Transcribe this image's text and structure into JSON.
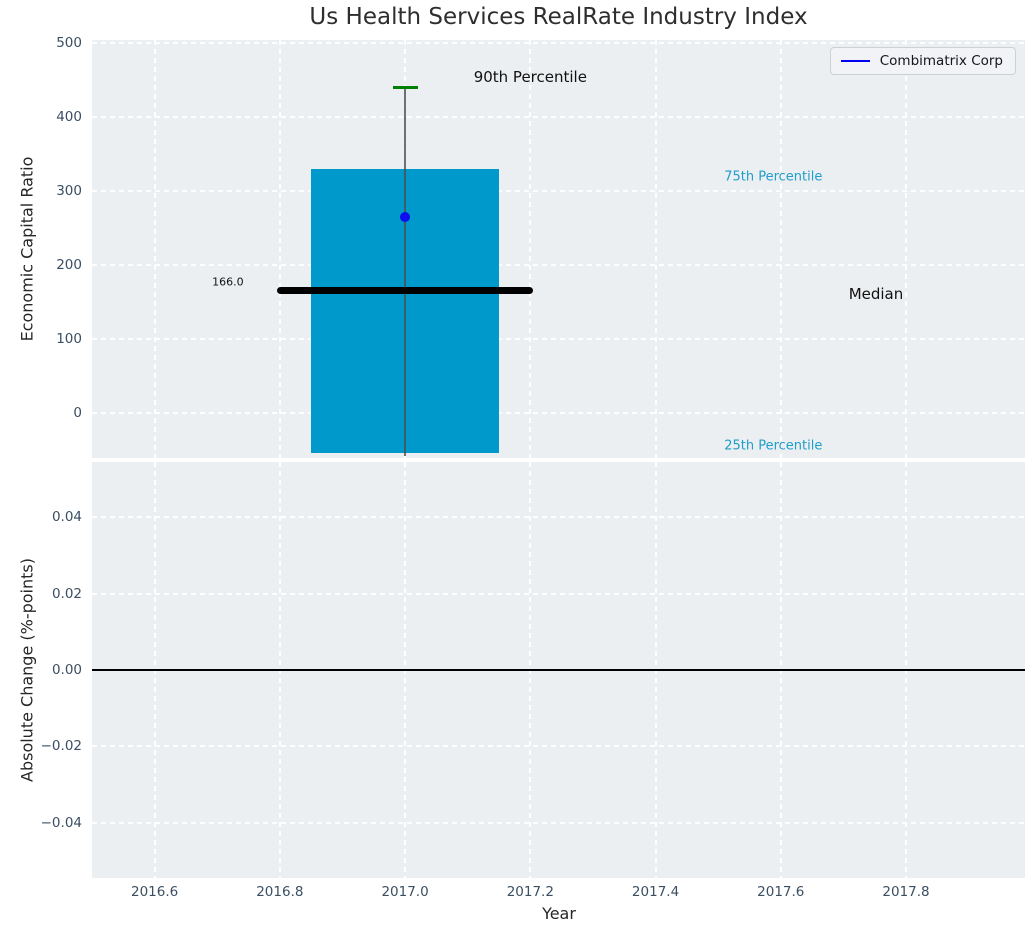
{
  "title": "Us Health Services RealRate Industry Index",
  "legend": {
    "label": "Combimatrix Corp",
    "line_color": "#0000ee"
  },
  "colors": {
    "bar": "#0099cb",
    "dot": "#0d0dee",
    "cap": "#008000",
    "median_line": "#000000",
    "whisker": "#4d4d4d",
    "percentile_text": "#1d9ecb",
    "annotation_text": "#111111",
    "tick_text": "#3b4f63",
    "panel_bg": "#eceff1",
    "grid": "#ffffff"
  },
  "chart_data": [
    {
      "type": "bar",
      "subtitle_role": "percentile box of industry index with company marker",
      "title": "Us Health Services RealRate Industry Index",
      "ylabel": "Economic Capital Ratio",
      "x_center": 2017.0,
      "box": {
        "p90": 440,
        "p75": 330,
        "median": 166.0,
        "p25": -54,
        "whisker_low": -58
      },
      "bar_x": [
        2016.85,
        2017.15
      ],
      "median_x": [
        2016.795,
        2017.205
      ],
      "cap_x": [
        2016.98,
        2017.02
      ],
      "company": {
        "name": "Combimatrix Corp",
        "x": 2017.0,
        "value": 265
      },
      "median_value_label": "166.0",
      "annotations": [
        {
          "name": "p90-label",
          "text": "90th Percentile",
          "x": 2017.2,
          "y": 454,
          "size": 15,
          "color": "#111111"
        },
        {
          "name": "p75-label",
          "text": "75th Percentile",
          "x": 2017.588,
          "y": 319,
          "size": 13,
          "color": "#1d9ecb"
        },
        {
          "name": "median-label",
          "text": "Median",
          "x": 2017.752,
          "y": 161,
          "size": 15,
          "color": "#111111"
        },
        {
          "name": "p25-label",
          "text": "25th Percentile",
          "x": 2017.588,
          "y": -45,
          "size": 13,
          "color": "#1d9ecb"
        },
        {
          "name": "median-value-label",
          "text": "166.0",
          "x": 2016.717,
          "y": 177,
          "size": 11,
          "color": "#111111"
        }
      ],
      "yticks": [
        0,
        100,
        200,
        300,
        400,
        500
      ],
      "ytick_labels": [
        "0",
        "100",
        "200",
        "300",
        "400",
        "500"
      ],
      "ylim": [
        -61,
        504
      ],
      "xlim": [
        2016.5,
        2017.99
      ],
      "xticks": [
        2016.6,
        2016.8,
        2017.0,
        2017.2,
        2017.4,
        2017.6,
        2017.8
      ],
      "grid": true,
      "legend_position": "upper right"
    },
    {
      "type": "line",
      "ylabel": "Absolute Change (%-points)",
      "xlabel": "Year",
      "zero_line": 0.0,
      "series": [],
      "yticks": [
        0.04,
        0.02,
        0.0,
        -0.02,
        -0.04
      ],
      "ytick_labels": [
        "0.04",
        "0.02",
        "0.00",
        "−0.02",
        "−0.04"
      ],
      "ylim": [
        -0.0545,
        0.0545
      ],
      "xlim": [
        2016.5,
        2017.99
      ],
      "xticks": [
        2016.6,
        2016.8,
        2017.0,
        2017.2,
        2017.4,
        2017.6,
        2017.8
      ],
      "xtick_labels": [
        "2016.6",
        "2016.8",
        "2017.0",
        "2017.2",
        "2017.4",
        "2017.6",
        "2017.8"
      ],
      "grid": true
    }
  ]
}
